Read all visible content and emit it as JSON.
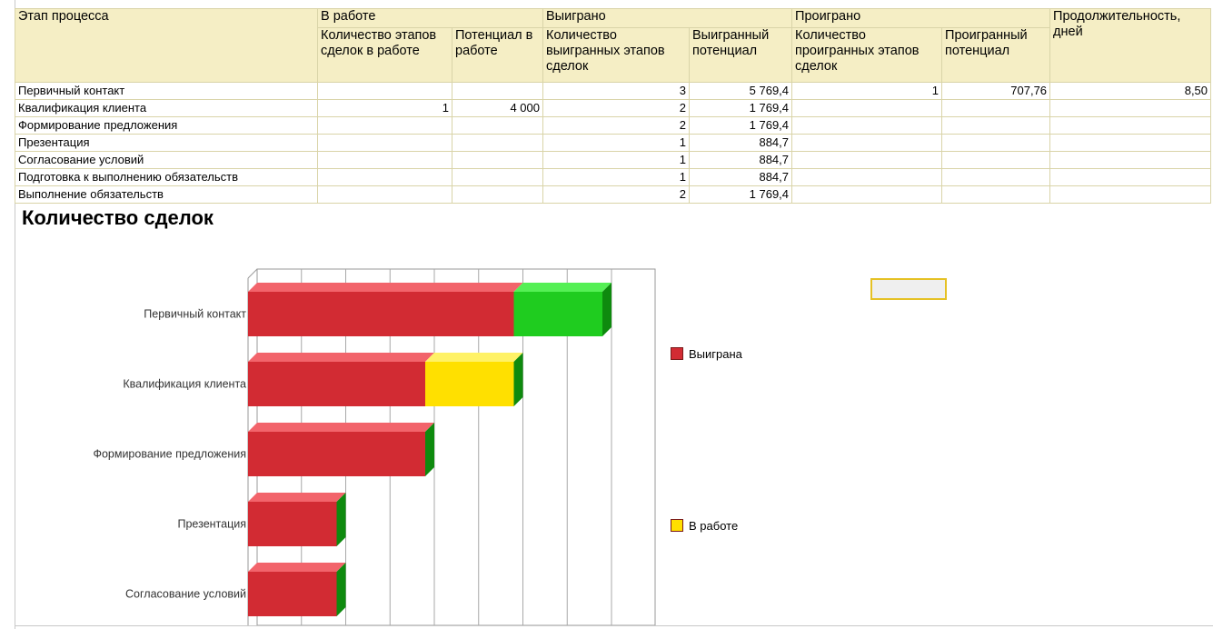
{
  "table": {
    "headers": {
      "stage": "Этап процесса",
      "in_work": "В работе",
      "won": "Выиграно",
      "lost": "Проиграно",
      "duration": "Продолжительность, дней",
      "in_work_count": "Количество этапов сделок в работе",
      "in_work_potential": "Потенциал в работе",
      "won_count": "Количество выигранных этапов сделок",
      "won_potential": "Выигранный потенциал",
      "lost_count": "Количество проигранных этапов сделок",
      "lost_potential": "Проигранный потенциал"
    },
    "rows": [
      {
        "stage": "Первичный контакт",
        "in_work_count": "",
        "in_work_potential": "",
        "won_count": "3",
        "won_potential": "5 769,4",
        "lost_count": "1",
        "lost_potential": "707,76",
        "duration": "8,50"
      },
      {
        "stage": "Квалификация клиента",
        "in_work_count": "1",
        "in_work_potential": "4 000",
        "won_count": "2",
        "won_potential": "1 769,4",
        "lost_count": "",
        "lost_potential": "",
        "duration": ""
      },
      {
        "stage": "Формирование предложения",
        "in_work_count": "",
        "in_work_potential": "",
        "won_count": "2",
        "won_potential": "1 769,4",
        "lost_count": "",
        "lost_potential": "",
        "duration": ""
      },
      {
        "stage": "Презентация",
        "in_work_count": "",
        "in_work_potential": "",
        "won_count": "1",
        "won_potential": "884,7",
        "lost_count": "",
        "lost_potential": "",
        "duration": ""
      },
      {
        "stage": "Согласование условий",
        "in_work_count": "",
        "in_work_potential": "",
        "won_count": "1",
        "won_potential": "884,7",
        "lost_count": "",
        "lost_potential": "",
        "duration": ""
      },
      {
        "stage": "Подготовка к выполнению обязательств",
        "in_work_count": "",
        "in_work_potential": "",
        "won_count": "1",
        "won_potential": "884,7",
        "lost_count": "",
        "lost_potential": "",
        "duration": ""
      },
      {
        "stage": "Выполнение обязательств",
        "in_work_count": "",
        "in_work_potential": "",
        "won_count": "2",
        "won_potential": "1 769,4",
        "lost_count": "",
        "lost_potential": "",
        "duration": ""
      }
    ]
  },
  "chart_title": "Количество сделок",
  "chart_data": {
    "type": "bar",
    "orientation": "horizontal",
    "stacked": true,
    "three_d": true,
    "title": "Количество сделок",
    "categories": [
      "Первичный контакт",
      "Квалификация клиента",
      "Формирование предложения",
      "Презентация",
      "Согласование условий"
    ],
    "series": [
      {
        "name": "Выиграна",
        "values": [
          3,
          2,
          2,
          1,
          1
        ],
        "color": "#d22b33"
      },
      {
        "name": "В работе",
        "values": [
          0,
          1,
          0,
          0,
          0
        ],
        "color": "#ffe000"
      },
      {
        "values": [
          1,
          0,
          0,
          0,
          0
        ],
        "color": "#1fcc1f"
      }
    ],
    "xlim": [
      0,
      4.5
    ],
    "grid": true,
    "legend_placement": "right"
  },
  "legend": {
    "won": {
      "label": "Выиграна",
      "color": "#d22b33"
    },
    "in_work": {
      "label": "В работе",
      "color": "#ffe000"
    }
  }
}
